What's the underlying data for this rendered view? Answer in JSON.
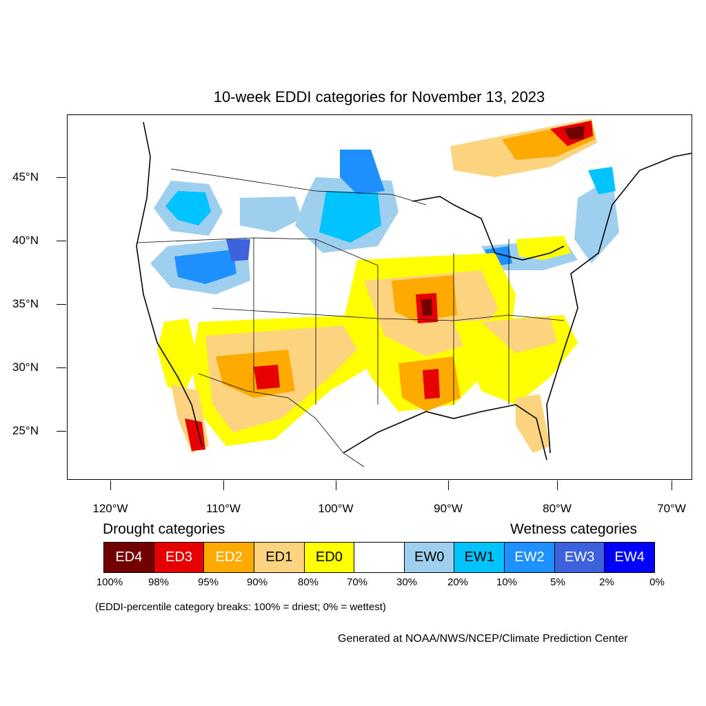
{
  "title": "10-week EDDI categories for November 13, 2023",
  "lat_labels": [
    "45°N",
    "40°N",
    "35°N",
    "30°N",
    "25°N"
  ],
  "lon_labels": [
    "120°W",
    "110°W",
    "100°W",
    "90°W",
    "80°W",
    "70°W"
  ],
  "legend": {
    "drought_heading": "Drought categories",
    "wetness_heading": "Wetness categories",
    "categories": [
      {
        "label": "ED4",
        "color": "#730000",
        "text_color": "#ffffff"
      },
      {
        "label": "ED3",
        "color": "#e60000",
        "text_color": "#ffffff"
      },
      {
        "label": "ED2",
        "color": "#ffaa00",
        "text_color": "#ffffff"
      },
      {
        "label": "ED1",
        "color": "#fcd37f",
        "text_color": "#000000"
      },
      {
        "label": "ED0",
        "color": "#ffff00",
        "text_color": "#000000"
      },
      {
        "label": "",
        "color": "#ffffff",
        "text_color": "#000000"
      },
      {
        "label": "EW0",
        "color": "#9fcfef",
        "text_color": "#000000"
      },
      {
        "label": "EW1",
        "color": "#00c3ff",
        "text_color": "#000000"
      },
      {
        "label": "EW2",
        "color": "#1e90ff",
        "text_color": "#ffffff"
      },
      {
        "label": "EW3",
        "color": "#3e62dd",
        "text_color": "#ffffff"
      },
      {
        "label": "EW4",
        "color": "#0000ff",
        "text_color": "#ffffff"
      }
    ],
    "breaks": [
      "100%",
      "98%",
      "95%",
      "90%",
      "80%",
      "70%",
      "30%",
      "20%",
      "10%",
      "5%",
      "2%",
      "0%"
    ]
  },
  "note": "(EDDI-percentile category breaks: 100% = driest; 0% = wettest)",
  "credit": "Generated at NOAA/NWS/NCEP/Climate Prediction Center"
}
